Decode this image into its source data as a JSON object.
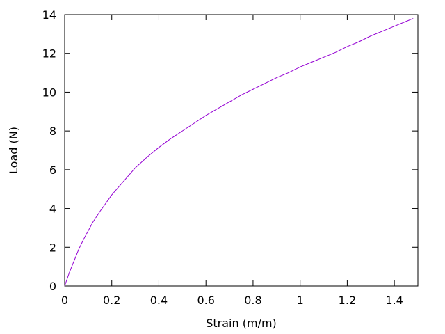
{
  "chart_data": {
    "type": "line",
    "title": "",
    "xlabel": "Strain (m/m)",
    "ylabel": "Load (N)",
    "xlim": [
      0,
      1.5
    ],
    "ylim": [
      0,
      14
    ],
    "grid": false,
    "x_ticks": [
      0,
      0.2,
      0.4,
      0.6,
      0.8,
      1,
      1.2,
      1.4
    ],
    "x_tick_labels": [
      "0",
      "0.2",
      "0.4",
      "0.6",
      "0.8",
      "1",
      "1.2",
      "1.4"
    ],
    "y_ticks": [
      0,
      2,
      4,
      6,
      8,
      10,
      12,
      14
    ],
    "y_tick_labels": [
      "0",
      "2",
      "4",
      "6",
      "8",
      "10",
      "12",
      "14"
    ],
    "line_color": "#9400d3",
    "series": [
      {
        "x": [
          0,
          0.02,
          0.04,
          0.06,
          0.08,
          0.1,
          0.12,
          0.15,
          0.2,
          0.25,
          0.3,
          0.35,
          0.4,
          0.45,
          0.5,
          0.55,
          0.6,
          0.65,
          0.7,
          0.75,
          0.8,
          0.85,
          0.9,
          0.95,
          1.0,
          1.05,
          1.1,
          1.15,
          1.2,
          1.25,
          1.3,
          1.35,
          1.4,
          1.45,
          1.48
        ],
        "y": [
          0,
          0.7,
          1.3,
          1.9,
          2.4,
          2.85,
          3.3,
          3.85,
          4.7,
          5.4,
          6.1,
          6.65,
          7.15,
          7.6,
          8.0,
          8.4,
          8.8,
          9.15,
          9.5,
          9.85,
          10.15,
          10.45,
          10.75,
          11.0,
          11.3,
          11.55,
          11.8,
          12.05,
          12.35,
          12.6,
          12.9,
          13.15,
          13.4,
          13.65,
          13.8
        ]
      }
    ]
  }
}
